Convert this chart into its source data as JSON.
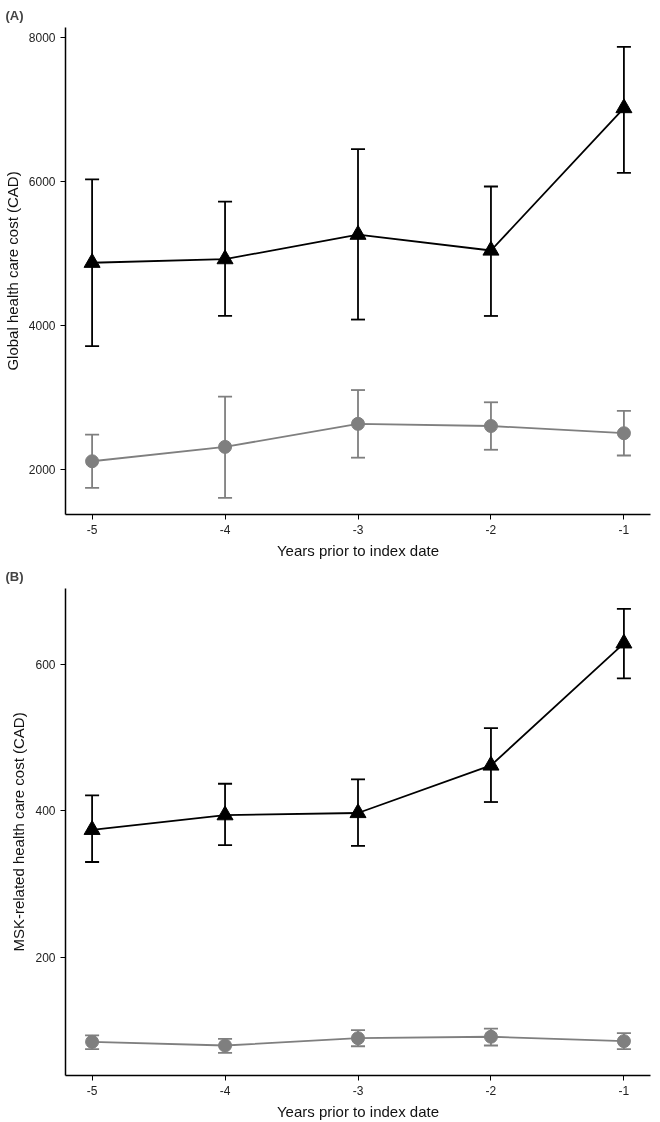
{
  "chart_data": [
    {
      "type": "line",
      "title": "(A)",
      "xlabel": "Years prior to index date",
      "ylabel": "Global health care cost (CAD)",
      "x": [
        -5,
        -4,
        -3,
        -2,
        -1
      ],
      "xlim": [
        -5.2,
        -0.8
      ],
      "xticks": [
        -5,
        -4,
        -3,
        -2,
        -1
      ],
      "ylim": [
        1370,
        8140
      ],
      "yticks": [
        2000,
        4000,
        6000,
        8000
      ],
      "grid": false,
      "line_style": "solid",
      "series": [
        {
          "color": "#000000",
          "marker": "triangle",
          "values": [
            4870,
            4920,
            5260,
            5040,
            7020
          ],
          "errors": [
            [
              3710,
              6030
            ],
            [
              4130,
              5720
            ],
            [
              4080,
              6450
            ],
            [
              4130,
              5930
            ],
            [
              6120,
              7870
            ]
          ]
        },
        {
          "color": "#7f7f7f",
          "marker": "circle",
          "values": [
            2110,
            2310,
            2630,
            2600,
            2500
          ],
          "errors": [
            [
              1740,
              2480
            ],
            [
              1600,
              3010
            ],
            [
              2160,
              3100
            ],
            [
              2270,
              2930
            ],
            [
              2190,
              2810
            ]
          ]
        }
      ]
    },
    {
      "type": "line",
      "title": "(B)",
      "xlabel": "Years prior to index date",
      "ylabel": "MSK-related health care cost (CAD)",
      "x": [
        -5,
        -4,
        -3,
        -2,
        -1
      ],
      "xlim": [
        -5.2,
        -0.8
      ],
      "xticks": [
        -5,
        -4,
        -3,
        -2,
        -1
      ],
      "ylim": [
        38,
        704
      ],
      "yticks": [
        200,
        400,
        600
      ],
      "grid": false,
      "line_style": "solid",
      "series": [
        {
          "color": "#000000",
          "marker": "triangle",
          "values": [
            374,
            394,
            397,
            462,
            629
          ],
          "errors": [
            [
              330,
              421
            ],
            [
              353,
              437
            ],
            [
              352,
              443
            ],
            [
              412,
              513
            ],
            [
              581,
              676
            ]
          ]
        },
        {
          "color": "#7f7f7f",
          "marker": "circle",
          "values": [
            84,
            79,
            89,
            91,
            85
          ],
          "errors": [
            [
              74,
              93
            ],
            [
              69,
              88
            ],
            [
              78,
              100
            ],
            [
              79,
              102
            ],
            [
              74,
              96
            ]
          ]
        }
      ]
    }
  ]
}
